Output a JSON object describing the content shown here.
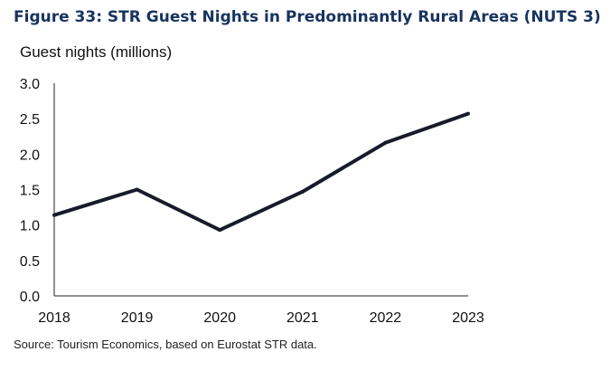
{
  "figure_title": "Figure 33: STR Guest Nights in Predominantly Rural Areas (NUTS 3)",
  "source": "Source: Tourism Economics, based on Eurostat STR data.",
  "colors": {
    "title": "#17335f",
    "line": "#171b2b",
    "axis": "#222222"
  },
  "chart_data": {
    "type": "line",
    "title": "Figure 33: STR Guest Nights in Predominantly Rural Areas (NUTS 3)",
    "ylabel": "Guest nights (millions)",
    "xlabel": "",
    "categories": [
      "2018",
      "2019",
      "2020",
      "2021",
      "2022",
      "2023"
    ],
    "series": [
      {
        "values": [
          1.14,
          1.5,
          0.93,
          1.47,
          2.16,
          2.57
        ]
      }
    ],
    "ylim": [
      0,
      3.0
    ],
    "yticks": [
      "0.0",
      "0.5",
      "1.0",
      "1.5",
      "2.0",
      "2.5",
      "3.0"
    ],
    "grid": false,
    "legend": "none"
  }
}
